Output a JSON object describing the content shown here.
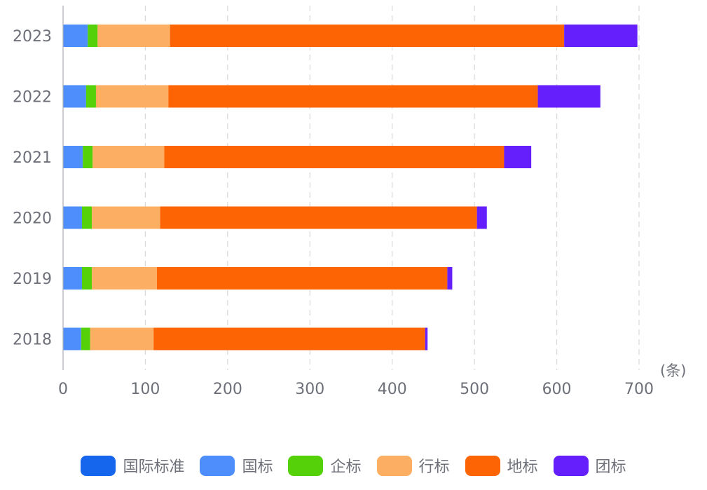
{
  "chart_data": {
    "type": "bar",
    "orientation": "horizontal",
    "stacked": true,
    "categories": [
      "2018",
      "2019",
      "2020",
      "2021",
      "2022",
      "2023"
    ],
    "series": [
      {
        "name": "国际标准",
        "color": "#1565ed",
        "values": [
          0,
          0,
          0,
          0,
          0,
          0
        ]
      },
      {
        "name": "国标",
        "color": "#4e8efc",
        "values": [
          22,
          23,
          23,
          24,
          28,
          30
        ]
      },
      {
        "name": "企标",
        "color": "#55d10a",
        "values": [
          11,
          12,
          12,
          12,
          12,
          12
        ]
      },
      {
        "name": "行标",
        "color": "#fcae63",
        "values": [
          77,
          79,
          83,
          87,
          88,
          88
        ]
      },
      {
        "name": "地标",
        "color": "#fd6404",
        "values": [
          330,
          353,
          385,
          413,
          449,
          479
        ]
      },
      {
        "name": "团标",
        "color": "#651efc",
        "values": [
          3,
          6,
          12,
          33,
          76,
          89
        ]
      }
    ],
    "xlim": [
      0,
      700
    ],
    "xticks": [
      0,
      100,
      200,
      300,
      400,
      500,
      600,
      700
    ],
    "unit_label": "(条)",
    "grid": "vertical dashed",
    "legend_position": "bottom"
  }
}
